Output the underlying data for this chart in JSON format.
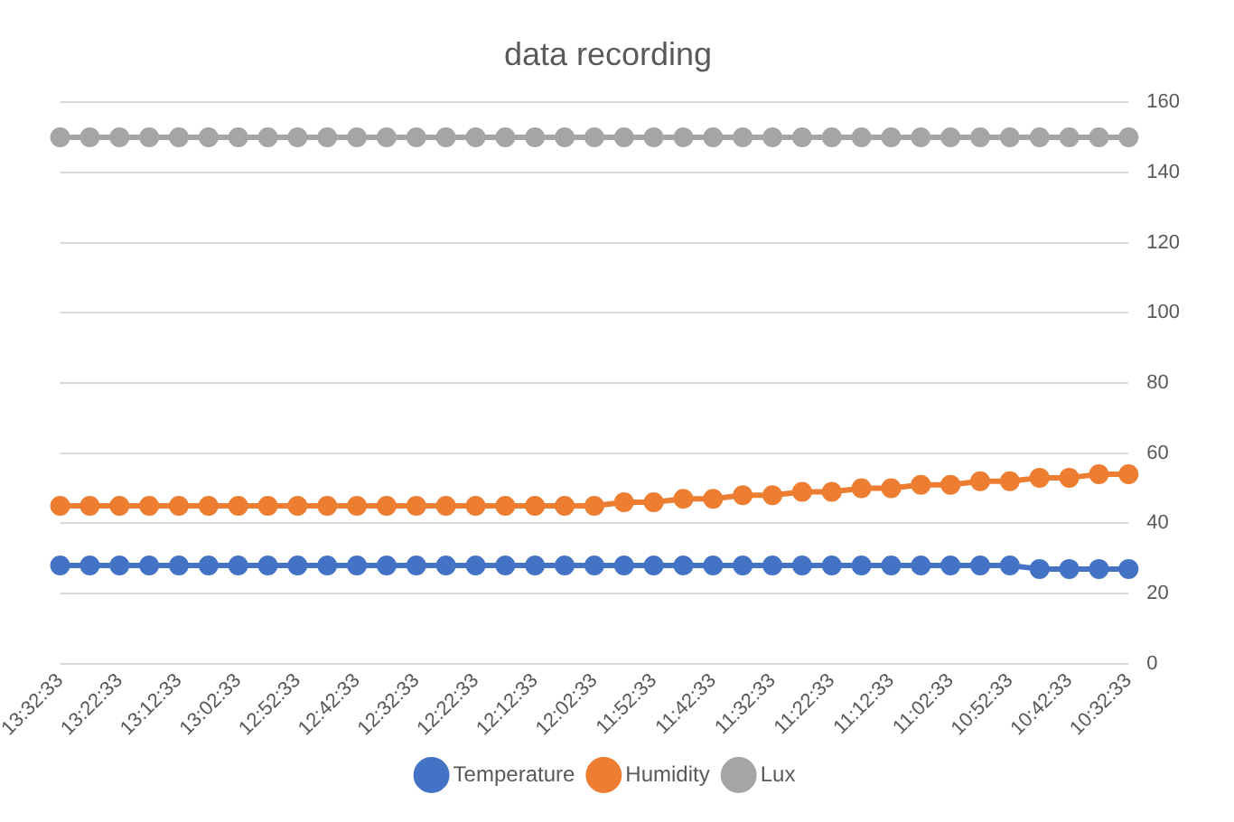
{
  "chart_data": {
    "type": "line",
    "title": "data recording",
    "categories": [
      "13:32:33",
      null,
      "13:22:33",
      null,
      "13:12:33",
      null,
      "13:02:33",
      null,
      "12:52:33",
      null,
      "12:42:33",
      null,
      "12:32:33",
      null,
      "12:22:33",
      null,
      "12:12:33",
      null,
      "12:02:33",
      null,
      "11:52:33",
      null,
      "11:42:33",
      null,
      "11:32:33",
      null,
      "11:22:33",
      null,
      "11:12:33",
      null,
      "11:02:33",
      null,
      "10:52:33",
      null,
      "10:42:33",
      null,
      "10:32:33"
    ],
    "series": [
      {
        "name": "Temperature",
        "color": "#4472c4",
        "values": [
          28,
          28,
          28,
          28,
          28,
          28,
          28,
          28,
          28,
          28,
          28,
          28,
          28,
          28,
          28,
          28,
          28,
          28,
          28,
          28,
          28,
          28,
          28,
          28,
          28,
          28,
          28,
          28,
          28,
          28,
          28,
          28,
          28,
          27,
          27,
          27,
          27
        ]
      },
      {
        "name": "Humidity",
        "color": "#ed7d31",
        "values": [
          45,
          45,
          45,
          45,
          45,
          45,
          45,
          45,
          45,
          45,
          45,
          45,
          45,
          45,
          45,
          45,
          45,
          45,
          45,
          46,
          46,
          47,
          47,
          48,
          48,
          49,
          49,
          50,
          50,
          51,
          51,
          52,
          52,
          53,
          53,
          54,
          54
        ]
      },
      {
        "name": "Lux",
        "color": "#a5a5a5",
        "values": [
          150,
          150,
          150,
          150,
          150,
          150,
          150,
          150,
          150,
          150,
          150,
          150,
          150,
          150,
          150,
          150,
          150,
          150,
          150,
          150,
          150,
          150,
          150,
          150,
          150,
          150,
          150,
          150,
          150,
          150,
          150,
          150,
          150,
          150,
          150,
          150,
          150
        ]
      }
    ],
    "ylim": [
      0,
      160
    ],
    "yticks": [
      0,
      20,
      40,
      60,
      80,
      100,
      120,
      140,
      160
    ],
    "grid": "y",
    "legend": "bottom",
    "marker": "circle",
    "line_style": "solid"
  }
}
